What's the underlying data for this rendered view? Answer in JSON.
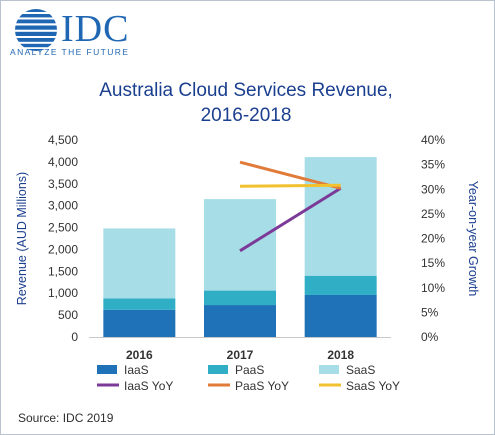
{
  "brand": {
    "logo_text": "IDC",
    "tagline": "ANALYZE THE FUTURE"
  },
  "source": "Source: IDC 2019",
  "colors": {
    "iaas": "#1f72b8",
    "paas": "#2faec6",
    "saas": "#a7dde6",
    "iaas_yoy": "#7b3a98",
    "paas_yoy": "#e07b39",
    "saas_yoy": "#f2c12e"
  },
  "chart_data": {
    "type": "bar",
    "title": "Australia Cloud Services Revenue, 2016-2018",
    "title_lines": [
      "Australia Cloud Services Revenue,",
      "2016-2018"
    ],
    "categories": [
      "2016",
      "2017",
      "2018"
    ],
    "stacked": true,
    "ylabel": "Revenue (AUD Millions)",
    "ylim": [
      0,
      4500
    ],
    "yticks": [
      "0",
      "500",
      "1,000",
      "1,500",
      "2,000",
      "2,500",
      "3,000",
      "3,500",
      "4,000",
      "4,500"
    ],
    "y2label": "Year-on-year Growth",
    "y2lim": [
      0,
      40
    ],
    "y2ticks": [
      "0%",
      "5%",
      "10%",
      "15%",
      "20%",
      "25%",
      "30%",
      "35%",
      "40%"
    ],
    "grid": false,
    "legend_position": "bottom",
    "series": [
      {
        "name": "IaaS",
        "kind": "bar",
        "values": [
          620,
          730,
          960
        ]
      },
      {
        "name": "PaaS",
        "kind": "bar",
        "values": [
          260,
          330,
          440
        ]
      },
      {
        "name": "SaaS",
        "kind": "bar",
        "values": [
          1600,
          2090,
          2710
        ]
      },
      {
        "name": "IaaS YoY",
        "kind": "line",
        "axis": "right",
        "points": [
          [
            "2017",
            17.5
          ],
          [
            "2018",
            30.2
          ]
        ]
      },
      {
        "name": "PaaS YoY",
        "kind": "line",
        "axis": "right",
        "points": [
          [
            "2017",
            35.5
          ],
          [
            "2018",
            30.2
          ]
        ]
      },
      {
        "name": "SaaS YoY",
        "kind": "line",
        "axis": "right",
        "points": [
          [
            "2017",
            30.6
          ],
          [
            "2018",
            30.8
          ]
        ]
      }
    ]
  }
}
